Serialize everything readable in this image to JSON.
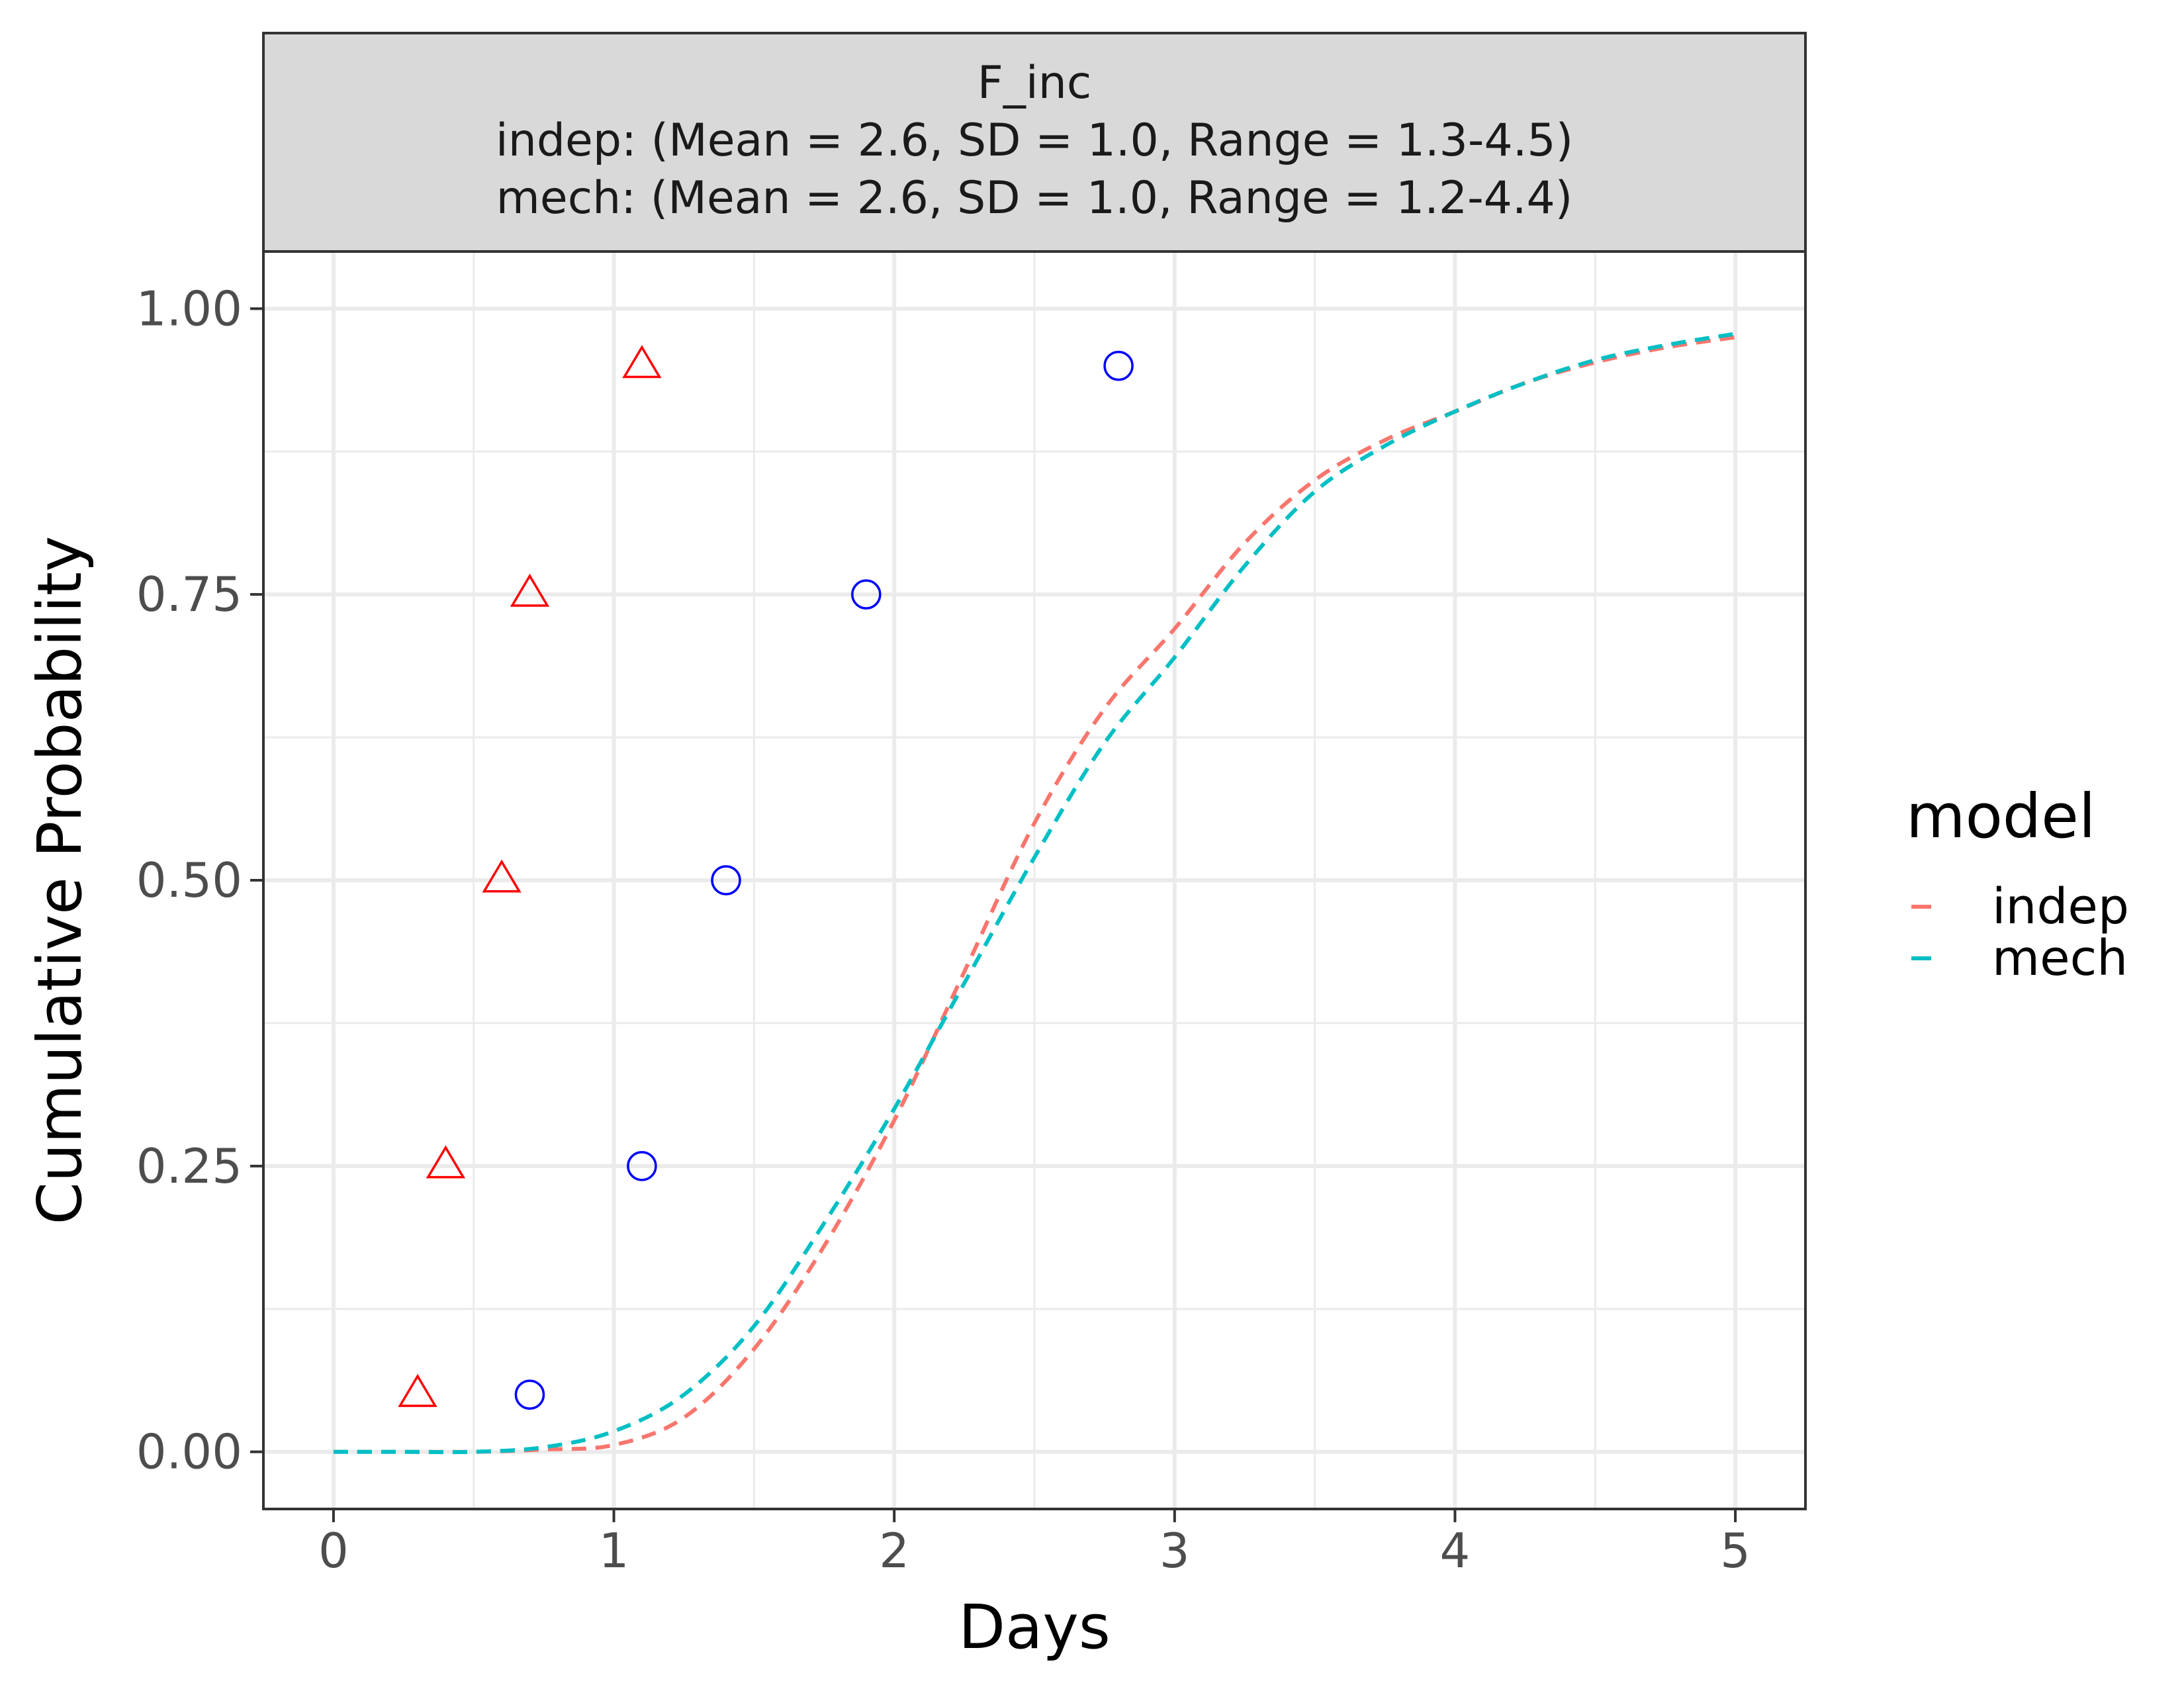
{
  "chart_data": {
    "type": "line",
    "facet": {
      "title_lines": [
        "F_inc",
        "indep: (Mean = 2.6, SD = 1.0, Range = 1.3-4.5)",
        "mech: (Mean = 2.6, SD = 1.0, Range = 1.2-4.4)"
      ]
    },
    "xlabel": "Days",
    "ylabel": "Cumulative Probability",
    "xlim": [
      -0.25,
      5.25
    ],
    "ylim": [
      -0.05,
      1.05
    ],
    "x_ticks": [
      0,
      1,
      2,
      3,
      4,
      5
    ],
    "x_tick_labels": [
      "0",
      "1",
      "2",
      "3",
      "4",
      "5"
    ],
    "y_ticks": [
      0,
      0.25,
      0.5,
      0.75,
      1.0
    ],
    "y_tick_labels": [
      "0.00",
      "0.25",
      "0.50",
      "0.75",
      "1.00"
    ],
    "grid": true,
    "legend": {
      "title": "model",
      "position": "right",
      "entries": [
        {
          "name": "indep",
          "color": "#F8766D",
          "linestyle": "dashed"
        },
        {
          "name": "mech",
          "color": "#00BFC4",
          "linestyle": "dashed"
        }
      ]
    },
    "series": [
      {
        "name": "indep",
        "color": "#F8766D",
        "linestyle": "dashed",
        "x": [
          0,
          0.25,
          0.5,
          0.75,
          1.0,
          1.25,
          1.5,
          1.75,
          2.0,
          2.25,
          2.5,
          2.75,
          3.0,
          3.25,
          3.5,
          3.75,
          4.0,
          4.25,
          4.5,
          4.75,
          5.0
        ],
        "y": [
          0.0,
          0.0,
          0.0,
          0.002,
          0.006,
          0.03,
          0.09,
          0.18,
          0.29,
          0.42,
          0.55,
          0.65,
          0.72,
          0.795,
          0.85,
          0.885,
          0.91,
          0.935,
          0.953,
          0.966,
          0.975
        ]
      },
      {
        "name": "mech",
        "color": "#00BFC4",
        "linestyle": "dashed",
        "x": [
          0,
          0.25,
          0.5,
          0.75,
          1.0,
          1.25,
          1.5,
          1.75,
          2.0,
          2.25,
          2.5,
          2.75,
          3.0,
          3.25,
          3.5,
          3.75,
          4.0,
          4.25,
          4.5,
          4.75,
          5.0
        ],
        "y": [
          0.0,
          0.0,
          0.0,
          0.004,
          0.018,
          0.05,
          0.11,
          0.2,
          0.3,
          0.41,
          0.52,
          0.62,
          0.695,
          0.775,
          0.84,
          0.88,
          0.91,
          0.935,
          0.955,
          0.968,
          0.978
        ]
      }
    ],
    "points": [
      {
        "shape": "triangle",
        "color": "#FF0000",
        "x": [
          0.3,
          0.4,
          0.6,
          0.7,
          1.1
        ],
        "y": [
          0.05,
          0.25,
          0.5,
          0.75,
          0.95
        ]
      },
      {
        "shape": "circle",
        "color": "#0000FF",
        "x": [
          0.7,
          1.1,
          1.4,
          1.9,
          2.8
        ],
        "y": [
          0.05,
          0.25,
          0.5,
          0.75,
          0.95
        ]
      }
    ]
  }
}
